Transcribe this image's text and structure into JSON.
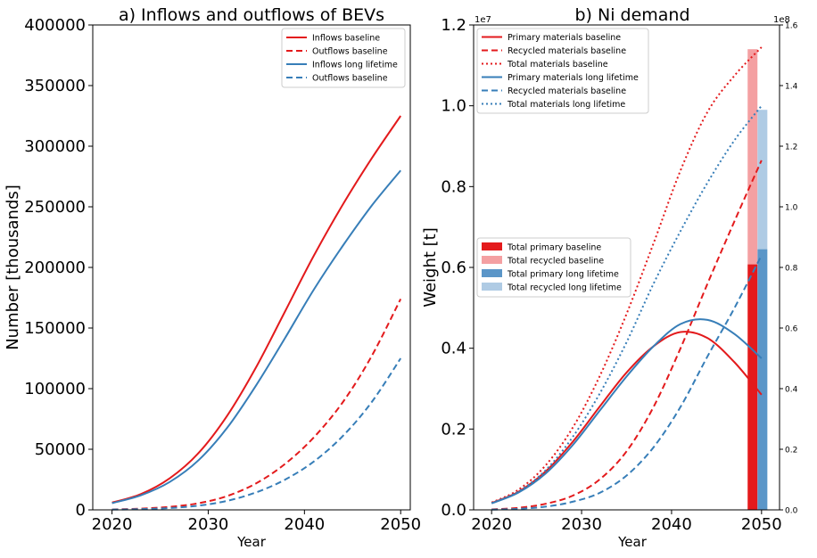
{
  "chart_data": [
    {
      "type": "line",
      "title": "a) Inflows and outflows of BEVs",
      "xlabel": "Year",
      "ylabel": "Number [thousands]",
      "xlim": [
        2018,
        2051
      ],
      "ylim": [
        0,
        400000
      ],
      "xticks": [
        2020,
        2030,
        2040,
        2050
      ],
      "yticks": [
        0,
        50000,
        100000,
        150000,
        200000,
        250000,
        300000,
        350000,
        400000
      ],
      "x": [
        2020,
        2023,
        2026,
        2029,
        2032,
        2035,
        2038,
        2041,
        2044,
        2047,
        2050
      ],
      "series": [
        {
          "name": "Inflows baseline",
          "color": "#e31a1c",
          "dash": "solid",
          "values": [
            6000,
            13000,
            26000,
            47000,
            78000,
            118000,
            164000,
            210000,
            252000,
            290000,
            325000
          ]
        },
        {
          "name": "Outflows baseline",
          "color": "#e31a1c",
          "dash": "dashed",
          "values": [
            300,
            1000,
            2500,
            5500,
            11500,
            22000,
            38000,
            60000,
            89000,
            127000,
            174000
          ]
        },
        {
          "name": "Inflows long lifetime",
          "color": "#377eb8",
          "dash": "solid",
          "values": [
            5500,
            12000,
            23000,
            41000,
            68000,
            103000,
            142000,
            182000,
            218000,
            251000,
            280000
          ]
        },
        {
          "name": "Outflows baseline",
          "color": "#377eb8",
          "dash": "dashed",
          "values": [
            200,
            600,
            1500,
            3500,
            7500,
            14500,
            25000,
            40000,
            61000,
            89000,
            125000
          ]
        }
      ],
      "legend": "top-right"
    },
    {
      "type": "line",
      "title": "b) Ni demand",
      "xlabel": "Year",
      "ylabel": "Weight [t]",
      "left_axis_multiplier": "1e7",
      "right_axis_multiplier": "1e8",
      "xlim": [
        2018,
        2052
      ],
      "ylim": [
        0,
        12000000
      ],
      "ylim_right": [
        0,
        160000000
      ],
      "xticks": [
        2020,
        2030,
        2040,
        2050
      ],
      "yticks_labels": [
        "0.0",
        "0.2",
        "0.4",
        "0.6",
        "0.8",
        "1.0",
        "1.2"
      ],
      "yticks": [
        0,
        2000000,
        4000000,
        6000000,
        8000000,
        10000000,
        12000000
      ],
      "yticks_right_labels": [
        "0.0",
        "0.2",
        "0.4",
        "0.6",
        "0.8",
        "1.0",
        "1.2",
        "1.4",
        "1.6"
      ],
      "yticks_right": [
        0,
        20000000,
        40000000,
        60000000,
        80000000,
        100000000,
        120000000,
        140000000,
        160000000
      ],
      "x": [
        2020,
        2023,
        2026,
        2029,
        2032,
        2035,
        2038,
        2041,
        2044,
        2047,
        2050
      ],
      "series": [
        {
          "name": "Primary materials baseline",
          "color": "#e31a1c",
          "dash": "solid",
          "values": [
            170000,
            450000,
            950000,
            1680000,
            2550000,
            3400000,
            4050000,
            4400000,
            4250000,
            3650000,
            2850000
          ]
        },
        {
          "name": "Recycled materials baseline",
          "color": "#e31a1c",
          "dash": "dashed",
          "values": [
            10000,
            50000,
            150000,
            350000,
            750000,
            1450000,
            2550000,
            4000000,
            5600000,
            7150000,
            8650000
          ]
        },
        {
          "name": "Total materials baseline",
          "color": "#e31a1c",
          "dash": "dotted",
          "values": [
            180000,
            500000,
            1100000,
            2030000,
            3300000,
            4850000,
            6600000,
            8400000,
            9850000,
            10750000,
            11450000
          ]
        },
        {
          "name": "Primary materials long lifetime",
          "color": "#377eb8",
          "dash": "solid",
          "values": [
            160000,
            430000,
            900000,
            1600000,
            2450000,
            3300000,
            4050000,
            4600000,
            4700000,
            4350000,
            3750000
          ]
        },
        {
          "name": "Recycled materials baseline",
          "color": "#377eb8",
          "dash": "dashed",
          "values": [
            5000,
            25000,
            80000,
            200000,
            420000,
            850000,
            1550000,
            2550000,
            3800000,
            5000000,
            6300000
          ]
        },
        {
          "name": "Total materials long lifetime",
          "color": "#377eb8",
          "dash": "dotted",
          "values": [
            165000,
            455000,
            980000,
            1800000,
            2870000,
            4150000,
            5600000,
            6900000,
            8100000,
            9150000,
            10000000
          ]
        }
      ],
      "bars": {
        "axis": "right",
        "groups": [
          {
            "year_position": 2049.0,
            "primary": 81000000,
            "recycled": 71000000,
            "primary_name": "Total primary baseline",
            "recycled_name": "Total recycled baseline",
            "primary_color": "#e41a1c",
            "recycled_color": "#f4a0a2"
          },
          {
            "year_position": 2050.1,
            "primary": 86000000,
            "recycled": 46000000,
            "primary_name": "Total primary long lifetime",
            "recycled_name": "Total recycled long lifetime",
            "primary_color": "#5b96c8",
            "recycled_color": "#afcbe4"
          }
        ]
      },
      "legend": "top-left, center-left"
    }
  ]
}
